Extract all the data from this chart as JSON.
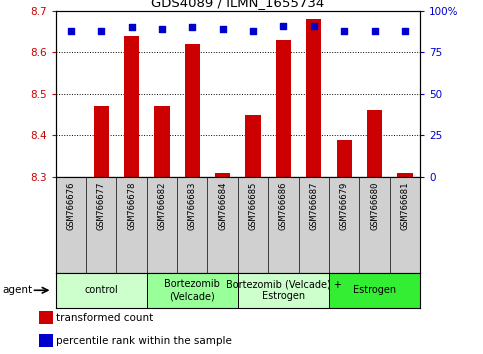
{
  "title": "GDS4089 / ILMN_1655734",
  "samples": [
    "GSM766676",
    "GSM766677",
    "GSM766678",
    "GSM766682",
    "GSM766683",
    "GSM766684",
    "GSM766685",
    "GSM766686",
    "GSM766687",
    "GSM766679",
    "GSM766680",
    "GSM766681"
  ],
  "transformed_counts": [
    8.3,
    8.47,
    8.64,
    8.47,
    8.62,
    8.31,
    8.45,
    8.63,
    8.68,
    8.39,
    8.46,
    8.31
  ],
  "percentile_ranks": [
    88,
    88,
    90,
    89,
    90,
    89,
    88,
    91,
    91,
    88,
    88,
    88
  ],
  "baseline": 8.3,
  "ylim_left": [
    8.3,
    8.7
  ],
  "ylim_right": [
    0,
    100
  ],
  "yticks_left": [
    8.3,
    8.4,
    8.5,
    8.6,
    8.7
  ],
  "yticks_right": [
    0,
    25,
    50,
    75,
    100
  ],
  "ytick_labels_right": [
    "0",
    "25",
    "50",
    "75",
    "100%"
  ],
  "groups": [
    {
      "label": "control",
      "start": 0,
      "end": 3,
      "color": "#ccffcc"
    },
    {
      "label": "Bortezomib\n(Velcade)",
      "start": 3,
      "end": 6,
      "color": "#99ff99"
    },
    {
      "label": "Bortezomib (Velcade) +\nEstrogen",
      "start": 6,
      "end": 9,
      "color": "#ccffcc"
    },
    {
      "label": "Estrogen",
      "start": 9,
      "end": 12,
      "color": "#33ee33"
    }
  ],
  "bar_color": "#cc0000",
  "dot_color": "#0000cc",
  "grid_color": "#000000",
  "tick_color_left": "#cc0000",
  "tick_color_right": "#0000cc",
  "legend_bar_label": "transformed count",
  "legend_dot_label": "percentile rank within the sample",
  "sample_bg_color": "#d0d0d0",
  "plot_bg_color": "#ffffff"
}
